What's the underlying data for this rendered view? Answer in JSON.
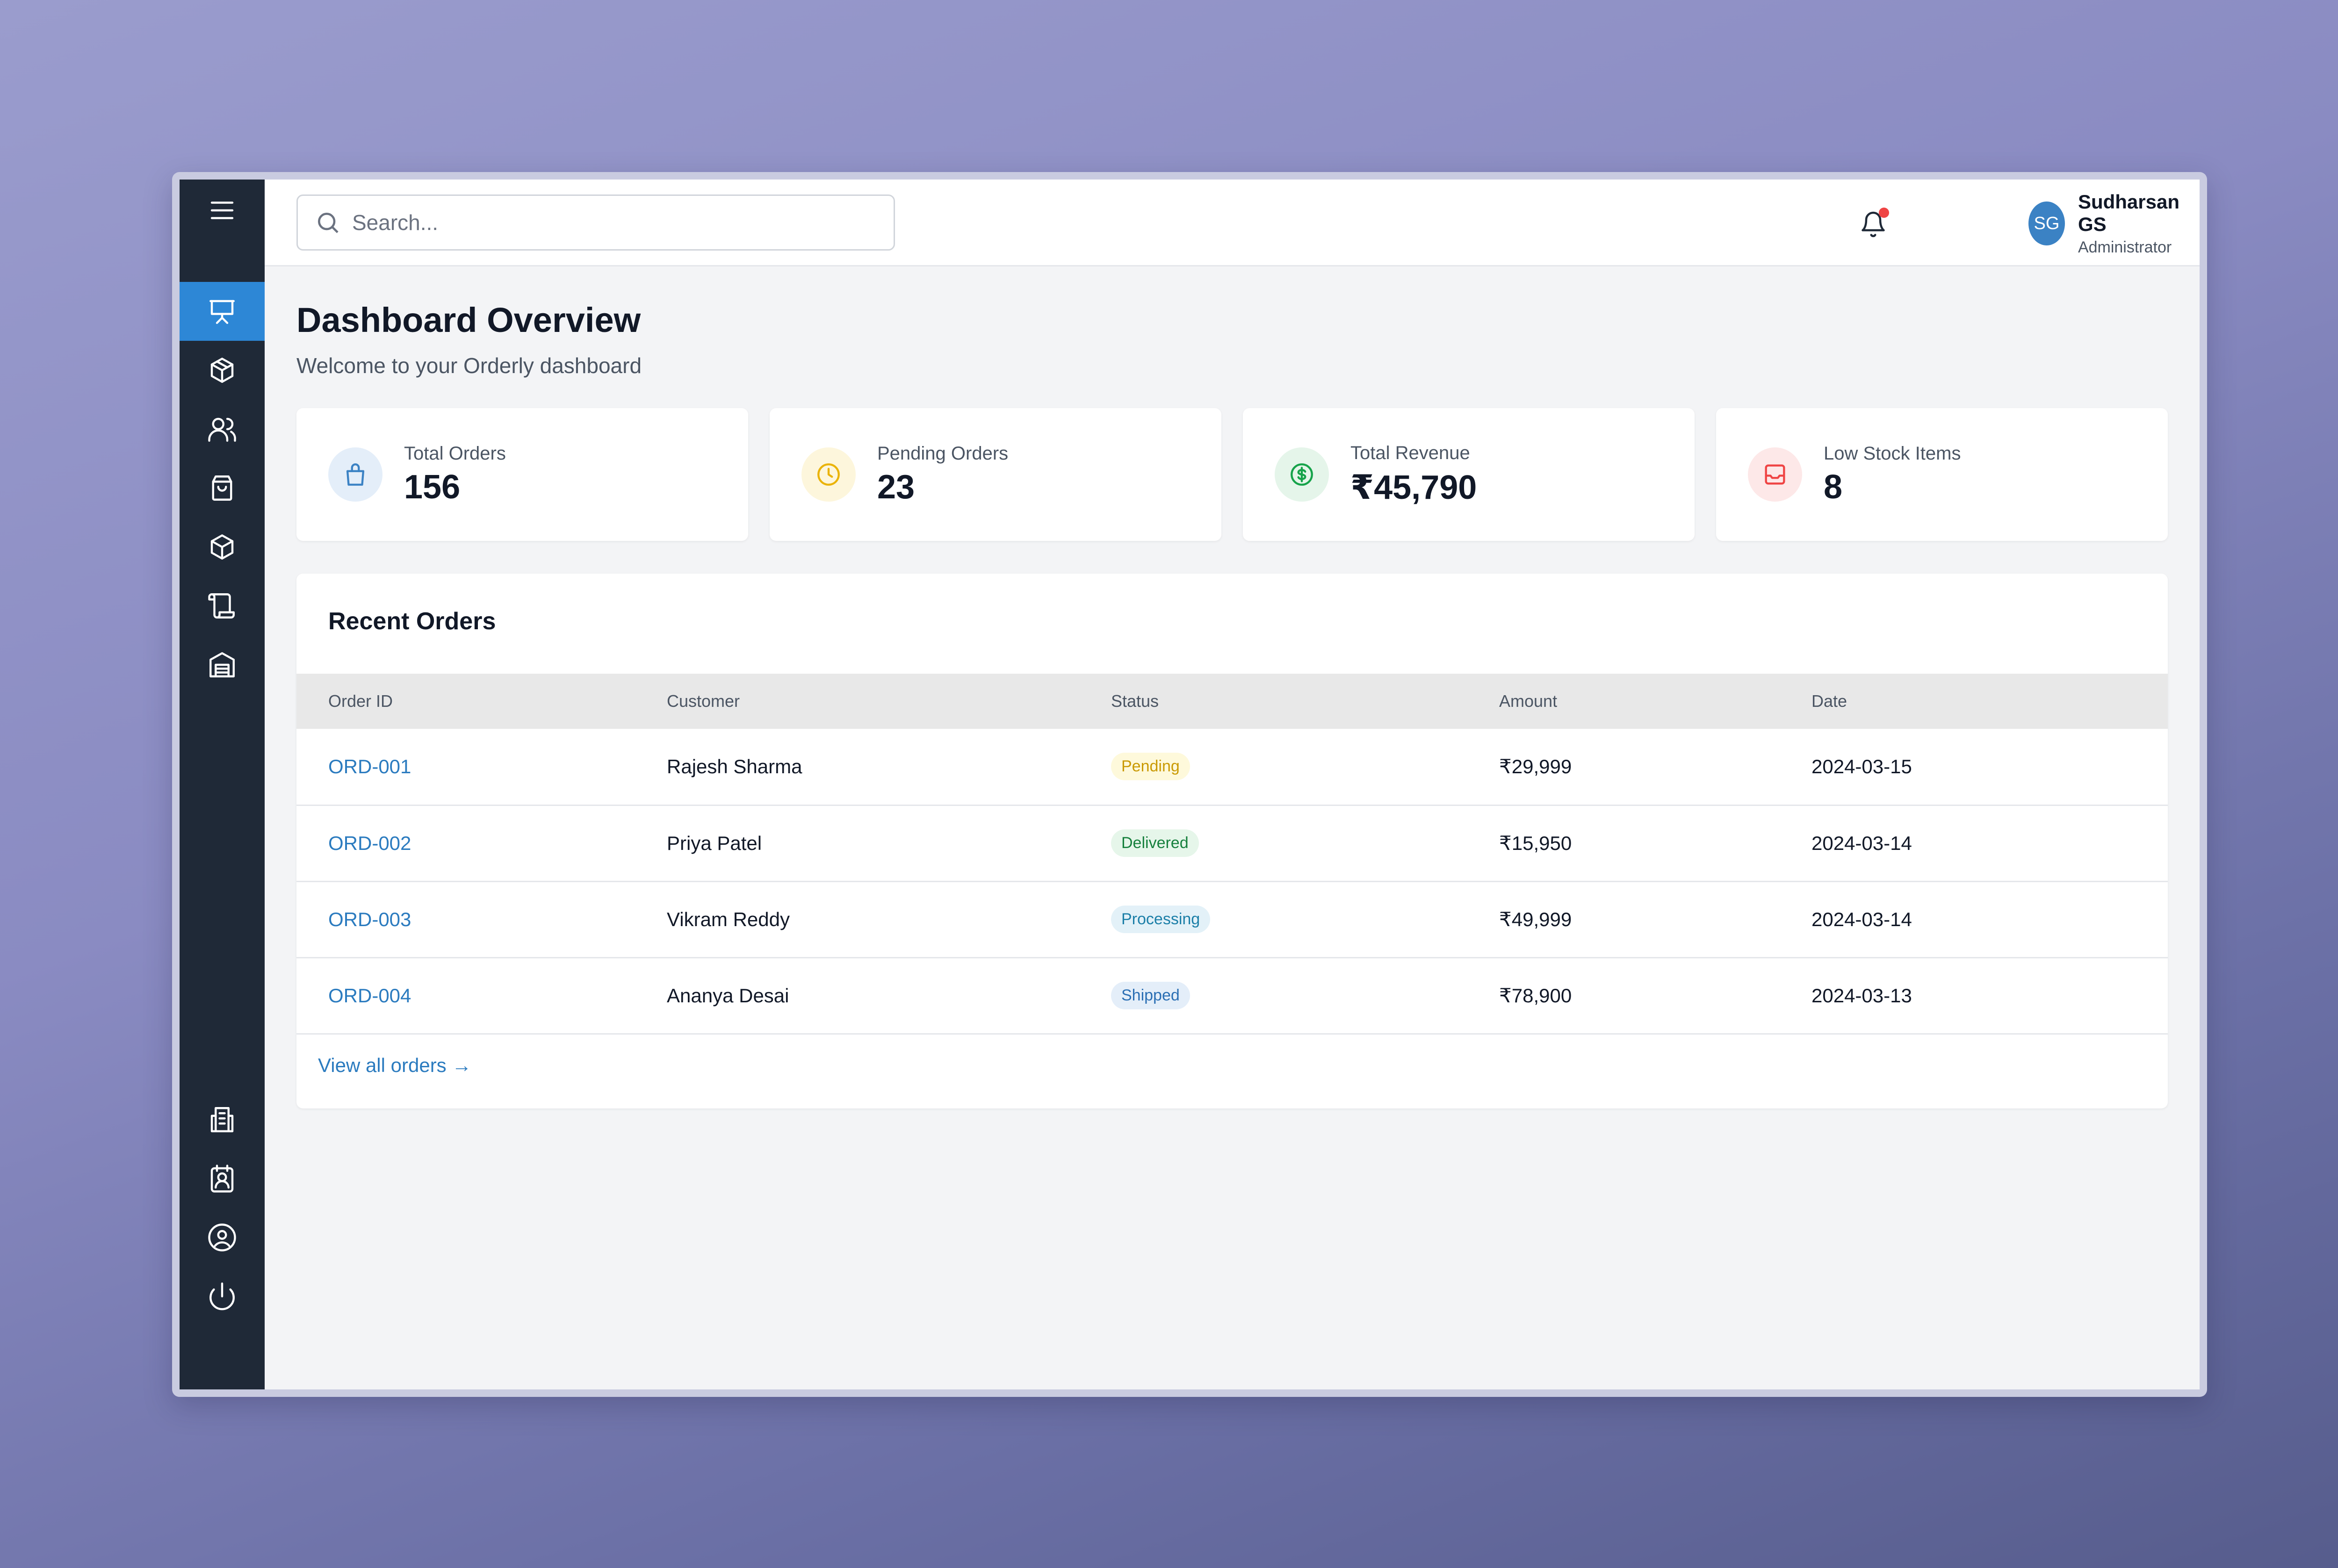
{
  "sidebar": {
    "items": [
      {
        "icon": "menu-icon"
      },
      {
        "icon": "presentation-icon",
        "active": true
      },
      {
        "icon": "package-icon"
      },
      {
        "icon": "users-icon"
      },
      {
        "icon": "shopping-bag-icon"
      },
      {
        "icon": "box-icon"
      },
      {
        "icon": "scroll-icon"
      },
      {
        "icon": "warehouse-icon"
      },
      {
        "icon": "receipt-icon"
      },
      {
        "icon": "contact-icon"
      },
      {
        "icon": "user-circle-icon"
      },
      {
        "icon": "power-icon"
      }
    ]
  },
  "header": {
    "search_placeholder": "Search...",
    "notification_dot_color": "#ef4444",
    "user": {
      "initials": "SG",
      "name": "Sudharsan GS",
      "role": "Administrator"
    }
  },
  "page": {
    "title": "Dashboard Overview",
    "subtitle": "Welcome to your Orderly dashboard"
  },
  "stats": [
    {
      "label": "Total Orders",
      "value": "156",
      "icon": "shopping-bag-icon",
      "color": "#3b82c4"
    },
    {
      "label": "Pending Orders",
      "value": "23",
      "icon": "clock-icon",
      "color": "#eab308"
    },
    {
      "label": "Total Revenue",
      "value": "₹45,790",
      "icon": "dollar-circle-icon",
      "color": "#16a34a"
    },
    {
      "label": "Low Stock Items",
      "value": "8",
      "icon": "inbox-icon",
      "color": "#ef4444"
    }
  ],
  "recent_orders": {
    "title": "Recent Orders",
    "columns": [
      "Order ID",
      "Customer",
      "Status",
      "Amount",
      "Date"
    ],
    "rows": [
      {
        "id": "ORD-001",
        "customer": "Rajesh Sharma",
        "status": "Pending",
        "amount": "₹29,999",
        "date": "2024-03-15"
      },
      {
        "id": "ORD-002",
        "customer": "Priya Patel",
        "status": "Delivered",
        "amount": "₹15,950",
        "date": "2024-03-14"
      },
      {
        "id": "ORD-003",
        "customer": "Vikram Reddy",
        "status": "Processing",
        "amount": "₹49,999",
        "date": "2024-03-14"
      },
      {
        "id": "ORD-004",
        "customer": "Ananya Desai",
        "status": "Shipped",
        "amount": "₹78,900",
        "date": "2024-03-13"
      }
    ],
    "status_colors": {
      "Pending": {
        "fg": "#ca9a04",
        "bg": "#fef9db"
      },
      "Delivered": {
        "fg": "#16803d",
        "bg": "#e6f6ea"
      },
      "Processing": {
        "fg": "#1c7fa8",
        "bg": "#e3f1f8"
      },
      "Shipped": {
        "fg": "#2b6fb4",
        "bg": "#e4eef9"
      }
    },
    "view_all": "View all orders →"
  }
}
